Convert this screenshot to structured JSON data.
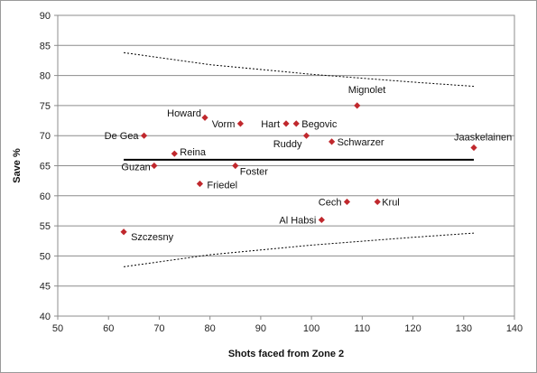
{
  "chart_data": {
    "type": "scatter",
    "title": "",
    "xlabel": "Shots faced from Zone 2",
    "ylabel": "Save %",
    "xlim": [
      50,
      140
    ],
    "ylim": [
      40,
      90
    ],
    "xticks": [
      50,
      60,
      70,
      80,
      90,
      100,
      110,
      120,
      130,
      140
    ],
    "yticks": [
      40,
      45,
      50,
      55,
      60,
      65,
      70,
      75,
      80,
      85,
      90
    ],
    "grid": "horizontal",
    "legend": "none",
    "marker_color": "#c0282d",
    "points": [
      {
        "name": "Mignolet",
        "x": 109,
        "y": 75
      },
      {
        "name": "Howard",
        "x": 79,
        "y": 73
      },
      {
        "name": "Vorm",
        "x": 86,
        "y": 72
      },
      {
        "name": "Hart",
        "x": 95,
        "y": 72
      },
      {
        "name": "Begovic",
        "x": 97,
        "y": 72
      },
      {
        "name": "De Gea",
        "x": 67,
        "y": 70
      },
      {
        "name": "Ruddy",
        "x": 99,
        "y": 70
      },
      {
        "name": "Schwarzer",
        "x": 104,
        "y": 69
      },
      {
        "name": "Jaaskelainen",
        "x": 132,
        "y": 68
      },
      {
        "name": "Reina",
        "x": 73,
        "y": 67
      },
      {
        "name": "Guzan",
        "x": 69,
        "y": 65
      },
      {
        "name": "Foster",
        "x": 85,
        "y": 65
      },
      {
        "name": "Friedel",
        "x": 78,
        "y": 62
      },
      {
        "name": "Cech",
        "x": 107,
        "y": 59
      },
      {
        "name": "Krul",
        "x": 113,
        "y": 59
      },
      {
        "name": "Al Habsi",
        "x": 102,
        "y": 56
      },
      {
        "name": "Szczesny",
        "x": 63,
        "y": 54
      }
    ],
    "reference_lines": {
      "mean": {
        "x": [
          63,
          132
        ],
        "y": [
          66,
          66
        ],
        "color": "#000000"
      },
      "upper_band": {
        "x": [
          63,
          80,
          100,
          120,
          132
        ],
        "y": [
          83.8,
          81.8,
          80.2,
          78.9,
          78.2
        ],
        "color": "#000000",
        "style": "dotted"
      },
      "lower_band": {
        "x": [
          63,
          80,
          100,
          120,
          132
        ],
        "y": [
          48.2,
          50.2,
          51.8,
          53.1,
          53.8
        ],
        "color": "#000000",
        "style": "dotted"
      }
    }
  }
}
